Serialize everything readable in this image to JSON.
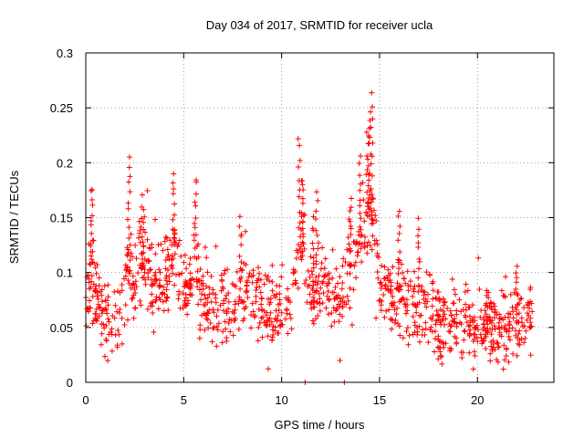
{
  "chart_data": {
    "type": "scatter",
    "title": "Day 034 of 2017, SRMTID for receiver ucla",
    "xlabel": "GPS time / hours",
    "ylabel": "SRMTID / TECUs",
    "xlim": [
      0,
      23.9
    ],
    "ylim": [
      0,
      0.3
    ],
    "xticks": [
      0,
      5,
      10,
      15,
      20
    ],
    "xtick_labels": [
      "0",
      "5",
      "10",
      "15",
      "20"
    ],
    "yticks": [
      0,
      0.05,
      0.1,
      0.15,
      0.2,
      0.25,
      0.3
    ],
    "ytick_labels": [
      "0",
      "0.05",
      "0.1",
      "0.15",
      "0.2",
      "0.25",
      "0.3"
    ],
    "grid": true,
    "marker": "+",
    "color": "#ff0000",
    "marker_count": 1200,
    "random_seed": 34,
    "noise": 0.018,
    "envelope": [
      [
        0.0,
        0.05
      ],
      [
        0.3,
        0.11
      ],
      [
        0.5,
        0.075
      ],
      [
        1.0,
        0.06
      ],
      [
        1.5,
        0.055
      ],
      [
        2.0,
        0.08
      ],
      [
        2.2,
        0.115
      ],
      [
        2.6,
        0.095
      ],
      [
        3.0,
        0.11
      ],
      [
        3.5,
        0.09
      ],
      [
        4.0,
        0.085
      ],
      [
        4.4,
        0.12
      ],
      [
        5.0,
        0.075
      ],
      [
        5.6,
        0.11
      ],
      [
        6.0,
        0.07
      ],
      [
        7.0,
        0.065
      ],
      [
        8.0,
        0.08
      ],
      [
        8.5,
        0.09
      ],
      [
        9.0,
        0.065
      ],
      [
        10.0,
        0.065
      ],
      [
        10.5,
        0.075
      ],
      [
        11.0,
        0.13
      ],
      [
        11.5,
        0.07
      ],
      [
        12.0,
        0.09
      ],
      [
        12.5,
        0.08
      ],
      [
        13.0,
        0.07
      ],
      [
        13.5,
        0.1
      ],
      [
        14.0,
        0.125
      ],
      [
        14.5,
        0.16
      ],
      [
        15.0,
        0.09
      ],
      [
        16.0,
        0.075
      ],
      [
        17.0,
        0.075
      ],
      [
        18.0,
        0.055
      ],
      [
        19.0,
        0.05
      ],
      [
        20.0,
        0.05
      ],
      [
        21.0,
        0.045
      ],
      [
        22.0,
        0.055
      ],
      [
        22.8,
        0.06
      ]
    ],
    "peaks": [
      {
        "x": 0.3,
        "y": 0.178
      },
      {
        "x": 2.2,
        "y": 0.206
      },
      {
        "x": 2.9,
        "y": 0.168
      },
      {
        "x": 4.5,
        "y": 0.19
      },
      {
        "x": 5.6,
        "y": 0.187
      },
      {
        "x": 7.9,
        "y": 0.15
      },
      {
        "x": 10.9,
        "y": 0.223
      },
      {
        "x": 11.1,
        "y": 0.185
      },
      {
        "x": 11.6,
        "y": 0.15
      },
      {
        "x": 11.8,
        "y": 0.172
      },
      {
        "x": 13.5,
        "y": 0.16
      },
      {
        "x": 14.0,
        "y": 0.204
      },
      {
        "x": 14.4,
        "y": 0.23
      },
      {
        "x": 14.6,
        "y": 0.261
      },
      {
        "x": 14.5,
        "y": 0.248
      },
      {
        "x": 16.0,
        "y": 0.158
      },
      {
        "x": 17.0,
        "y": 0.148
      },
      {
        "x": 20.5,
        "y": 0.085
      },
      {
        "x": 22.0,
        "y": 0.104
      }
    ],
    "zero_markers": [
      {
        "x": 11.2,
        "y": 0.0
      },
      {
        "x": 13.2,
        "y": 0.0
      }
    ]
  }
}
